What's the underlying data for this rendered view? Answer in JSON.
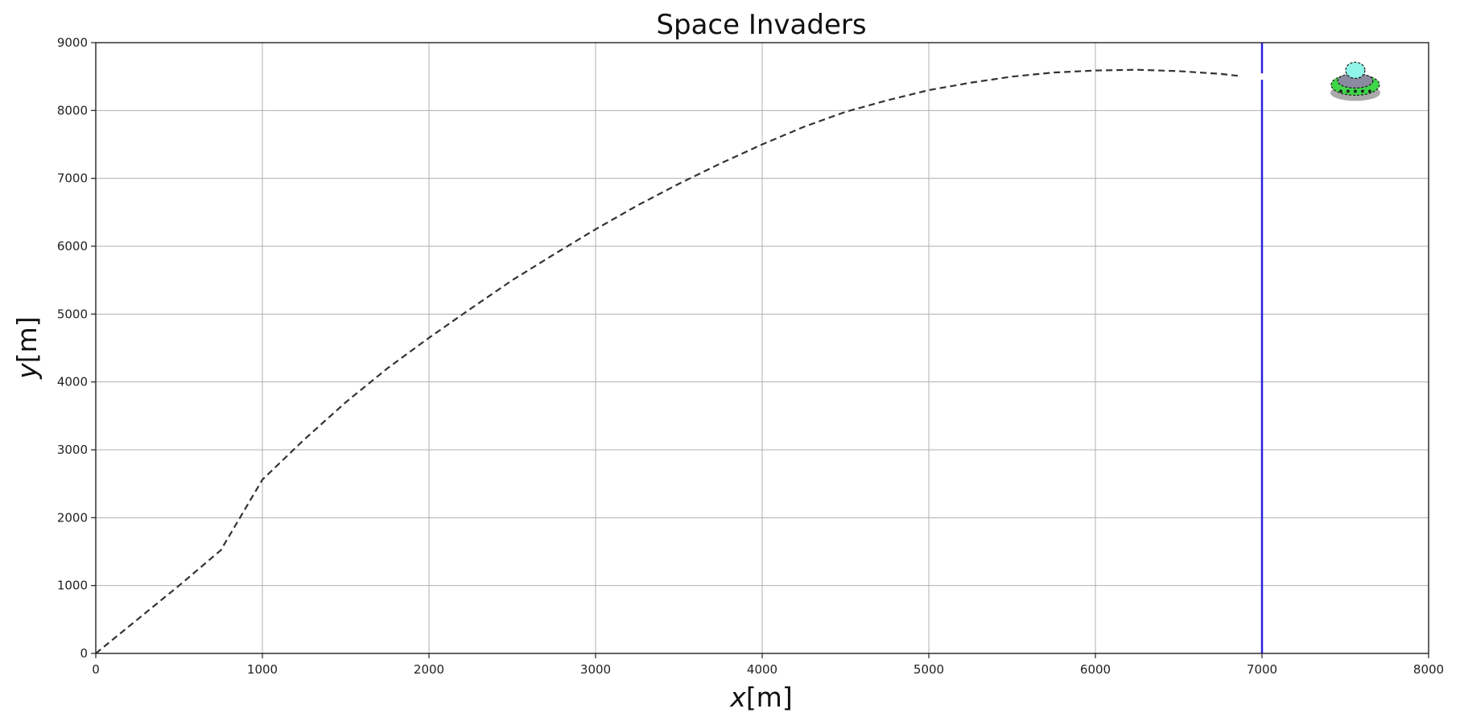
{
  "chart_data": {
    "type": "line",
    "title": "Space Invaders",
    "xlabel": {
      "var": "x",
      "unit": "[m]"
    },
    "ylabel": {
      "var": "y",
      "unit": "[m]"
    },
    "xlim": [
      0,
      8000
    ],
    "ylim": [
      0,
      9000
    ],
    "xticks": [
      "0",
      "1000",
      "2000",
      "3000",
      "4000",
      "5000",
      "6000",
      "7000",
      "8000"
    ],
    "yticks": [
      "0",
      "1000",
      "2000",
      "3000",
      "4000",
      "5000",
      "6000",
      "7000",
      "8000",
      "9000"
    ],
    "grid": true,
    "series": [
      {
        "style": "dashed",
        "color": "#333333",
        "points": [
          [
            0,
            0
          ],
          [
            250,
            500
          ],
          [
            500,
            1000
          ],
          [
            750,
            1520
          ],
          [
            1000,
            2560
          ],
          [
            1250,
            3150
          ],
          [
            1500,
            3700
          ],
          [
            1750,
            4200
          ],
          [
            2000,
            4650
          ],
          [
            2250,
            5080
          ],
          [
            2500,
            5500
          ],
          [
            2750,
            5880
          ],
          [
            3000,
            6250
          ],
          [
            3250,
            6600
          ],
          [
            3500,
            6920
          ],
          [
            3750,
            7220
          ],
          [
            4000,
            7500
          ],
          [
            4250,
            7760
          ],
          [
            4500,
            7980
          ],
          [
            4750,
            8150
          ],
          [
            5000,
            8300
          ],
          [
            5250,
            8410
          ],
          [
            5500,
            8500
          ],
          [
            5750,
            8560
          ],
          [
            6000,
            8590
          ],
          [
            6250,
            8600
          ],
          [
            6500,
            8580
          ],
          [
            6750,
            8540
          ],
          [
            6860,
            8510
          ]
        ]
      }
    ],
    "vline": {
      "x": 7000,
      "color": "#2a1fe0"
    },
    "barrier_gap": {
      "x": 7000,
      "y": 8500
    },
    "target": {
      "name": "ufo-icon",
      "x": 7560,
      "y": 8450
    },
    "colors": {
      "grid": "#b0b0b0",
      "axes": "#222222",
      "ufo_dome": "#8ef5e8",
      "ufo_body": "#8a8aa0",
      "ufo_ring": "#3fd64a",
      "ufo_shadow": "#9a9a9a"
    }
  }
}
